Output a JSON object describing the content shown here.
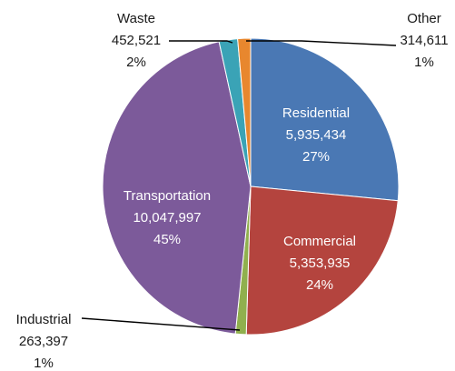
{
  "chart_data": {
    "type": "pie",
    "start_angle_deg": 0,
    "direction": "clockwise",
    "slices": [
      {
        "name": "Residential",
        "value_text": "5,935,434",
        "value": 5935434,
        "percent_text": "27%",
        "color": "#4a78b4"
      },
      {
        "name": "Commercial",
        "value_text": "5,353,935",
        "value": 5353935,
        "percent_text": "24%",
        "color": "#b4443e"
      },
      {
        "name": "Industrial",
        "value_text": "263,397",
        "value": 263397,
        "percent_text": "1%",
        "color": "#90b04e"
      },
      {
        "name": "Transportation",
        "value_text": "10,047,997",
        "value": 10047997,
        "percent_text": "45%",
        "color": "#7c5a9a"
      },
      {
        "name": "Waste",
        "value_text": "452,521",
        "value": 452521,
        "percent_text": "2%",
        "color": "#3aa3b6"
      },
      {
        "name": "Other",
        "value_text": "314,611",
        "value": 314611,
        "percent_text": "1%",
        "color": "#e8872e"
      }
    ]
  }
}
